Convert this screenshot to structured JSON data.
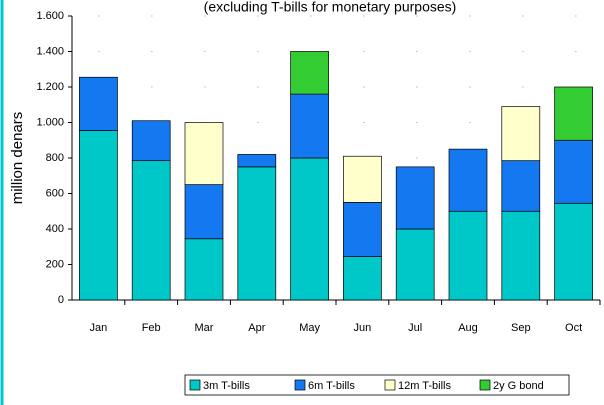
{
  "chart_data": {
    "type": "stacked-bar",
    "title": "(excluding T-bills for monetary purposes)",
    "y_label": "million denars",
    "categories": [
      "Jan",
      "Feb",
      "Mar",
      "Apr",
      "May",
      "Jun",
      "Jul",
      "Aug",
      "Sep",
      "Oct"
    ],
    "series": [
      {
        "name": "3m T-bills",
        "color": "#00c8c8",
        "values": [
          955,
          785,
          345,
          750,
          800,
          245,
          400,
          500,
          500,
          545
        ]
      },
      {
        "name": "6m T-bills",
        "color": "#1478f0",
        "values": [
          300,
          225,
          305,
          70,
          360,
          305,
          350,
          350,
          285,
          355
        ]
      },
      {
        "name": "12m T-bills",
        "color": "#ffffcc",
        "values": [
          null,
          null,
          350,
          null,
          null,
          260,
          null,
          null,
          305,
          null
        ]
      },
      {
        "name": "2y G bond",
        "color": "#33cc33",
        "values": [
          null,
          null,
          null,
          null,
          240,
          null,
          null,
          null,
          null,
          300
        ]
      }
    ],
    "ylim": [
      0,
      1600
    ],
    "yticks": [
      0,
      200,
      400,
      600,
      800,
      {
        "value": 1000,
        "label": "1.000"
      },
      {
        "value": 1200,
        "label": "1.200"
      },
      {
        "value": 1400,
        "label": "1.400"
      },
      {
        "value": 1600,
        "label": "1.600"
      }
    ],
    "grid": true
  }
}
